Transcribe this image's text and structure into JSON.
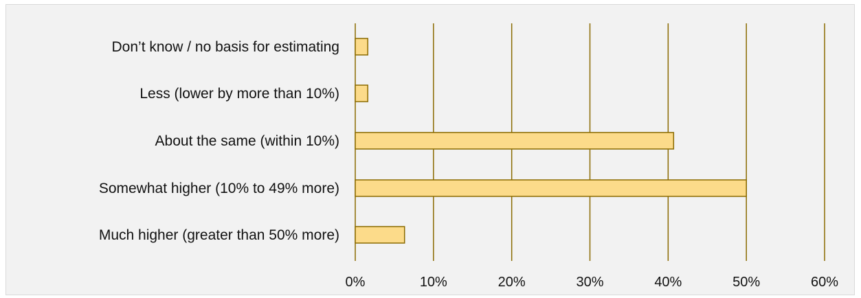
{
  "chart_data": {
    "type": "bar",
    "orientation": "horizontal",
    "categories": [
      "Don’t know / no basis for estimating",
      "Less (lower by more than 10%)",
      "About the same (within 10%)",
      "Somewhat higher (10% to 49% more)",
      "Much higher (greater than 50% more)"
    ],
    "values": [
      1.6,
      1.6,
      40.7,
      50.0,
      6.3
    ],
    "xlim": [
      0,
      60
    ],
    "x_ticks": [
      "0%",
      "10%",
      "20%",
      "30%",
      "40%",
      "50%",
      "60%"
    ],
    "grid": "vertical",
    "legend": "none",
    "colors": {
      "bar_fill": "#fcdb8a",
      "bar_stroke": "#8a6a00",
      "gridline": "#8a6a00",
      "background": "#f2f2f2"
    }
  }
}
